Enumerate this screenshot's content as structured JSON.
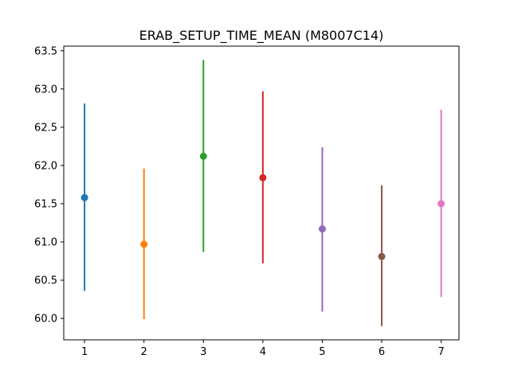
{
  "chart_data": {
    "type": "scatter",
    "title": "ERAB_SETUP_TIME_MEAN (M8007C14)",
    "xlabel": "",
    "ylabel": "",
    "xlim": [
      0.65,
      7.3
    ],
    "ylim": [
      59.72,
      63.56
    ],
    "x_ticks": [
      "1",
      "2",
      "3",
      "4",
      "5",
      "6",
      "7"
    ],
    "y_ticks": [
      "60.0",
      "60.5",
      "61.0",
      "61.5",
      "62.0",
      "62.5",
      "63.0",
      "63.5"
    ],
    "grid": false,
    "legend": "none",
    "points": [
      {
        "x": 1,
        "mean": 61.58,
        "low": 60.36,
        "high": 62.81,
        "color": "#1f77b4"
      },
      {
        "x": 2,
        "mean": 60.97,
        "low": 59.99,
        "high": 61.96,
        "color": "#ff7f0e"
      },
      {
        "x": 3,
        "mean": 62.12,
        "low": 60.87,
        "high": 63.38,
        "color": "#2ca02c"
      },
      {
        "x": 4,
        "mean": 61.84,
        "low": 60.72,
        "high": 62.97,
        "color": "#d62728"
      },
      {
        "x": 5,
        "mean": 61.17,
        "low": 60.09,
        "high": 62.24,
        "color": "#9467bd"
      },
      {
        "x": 6,
        "mean": 60.81,
        "low": 59.9,
        "high": 61.74,
        "color": "#8c564b"
      },
      {
        "x": 7,
        "mean": 61.5,
        "low": 60.28,
        "high": 62.73,
        "color": "#e377c2"
      }
    ]
  }
}
